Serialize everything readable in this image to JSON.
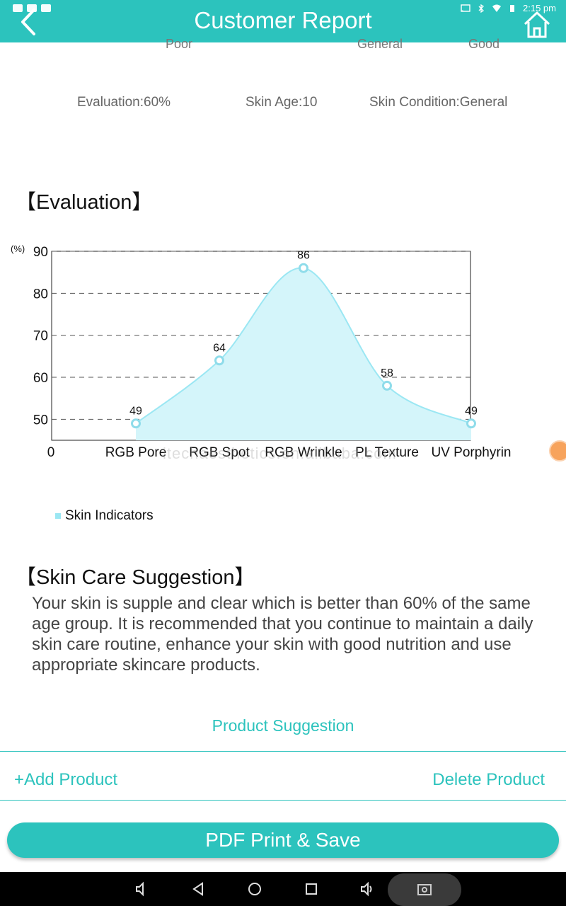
{
  "header": {
    "title": "Customer Report",
    "time": "2:15 pm"
  },
  "scale": {
    "poor": "Poor",
    "general": "General",
    "good": "Good"
  },
  "stats": {
    "evaluation": "Evaluation:60%",
    "skin_age": "Skin Age:10",
    "skin_condition": "Skin Condition:General"
  },
  "evaluation_heading": "【Evaluation】",
  "chart_data": {
    "type": "area",
    "ylabel": "(%)",
    "origin_label": "0",
    "categories": [
      "RGB Pore",
      "RGB Spot",
      "RGB Wrinkle",
      "PL Texture",
      "UV Porphyrin"
    ],
    "series": [
      {
        "name": "Skin Indicators",
        "values": [
          49,
          64,
          86,
          58,
          49
        ]
      }
    ],
    "ylim": [
      45,
      90
    ],
    "yticks": [
      50,
      60,
      70,
      80,
      90
    ],
    "grid": true,
    "legend_position": "bottom-left",
    "colors": {
      "fill": "#d4f5fa",
      "line": "#9be7f3",
      "marker": "#8fdcea"
    }
  },
  "watermark": "itechaesthetics.en.alibaba.com",
  "suggestion_heading": "【Skin Care Suggestion】",
  "suggestion_text": "Your skin is supple and clear which is better than 60% of the same age group. It is recommended that you continue to maintain a daily skin care routine, enhance your skin with good nutrition and use appropriate skincare products.",
  "product": {
    "heading": "Product Suggestion",
    "add": "+Add Product",
    "delete": "Delete Product"
  },
  "pdf_button": "PDF Print & Save",
  "theme": {
    "accent": "#2cc3bd"
  }
}
